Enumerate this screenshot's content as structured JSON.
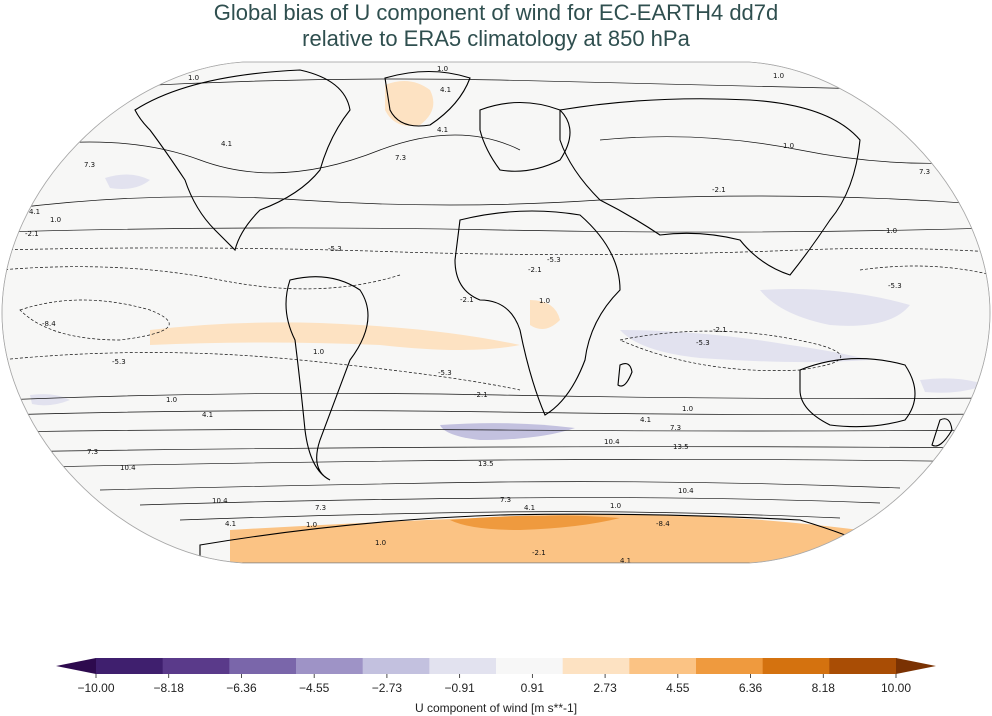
{
  "title": {
    "line1": "Global bias of U component of wind for EC-EARTH4 dd7d",
    "line2": "relative to ERA5 climatology at 850 hPa"
  },
  "colorbar": {
    "label": "U component of wind [m s**-1]",
    "ticks": [
      "−10.00",
      "−8.18",
      "−6.36",
      "−4.55",
      "−2.73",
      "−0.91",
      "0.91",
      "2.73",
      "4.55",
      "6.36",
      "8.18",
      "10.00"
    ],
    "colors": [
      "#3f1f6e",
      "#5a3a8a",
      "#7a66aa",
      "#9e93c6",
      "#c3c1df",
      "#e2e2ef",
      "#f7f7f7",
      "#fde2c2",
      "#fbc384",
      "#ef9a3e",
      "#d4720f",
      "#a94d05"
    ],
    "extend_low_color": "#2d0a4e",
    "extend_high_color": "#7a3203"
  },
  "map": {
    "projection": "robinson",
    "background": "#f7f7f6",
    "land_outline": "#000000"
  },
  "contour_labels": [
    {
      "text": "1.0"
    },
    {
      "text": "1.0"
    },
    {
      "text": "4.1"
    },
    {
      "text": "1.0"
    },
    {
      "text": "4.1"
    },
    {
      "text": "7.3"
    },
    {
      "text": "7.3"
    },
    {
      "text": "7.3"
    },
    {
      "text": "4.1"
    },
    {
      "text": "1.0"
    },
    {
      "text": "-2.1"
    },
    {
      "text": "1.0"
    },
    {
      "text": "-5.3"
    },
    {
      "text": "-5.3"
    },
    {
      "text": "-8.4"
    },
    {
      "text": "-5.3"
    },
    {
      "text": "-2.1"
    },
    {
      "text": "-2.1"
    },
    {
      "text": "-5.3"
    },
    {
      "text": "1.0"
    },
    {
      "text": "4.1"
    },
    {
      "text": "7.3"
    },
    {
      "text": "10.4"
    },
    {
      "text": "13.5"
    },
    {
      "text": "10.4"
    },
    {
      "text": "7.3"
    },
    {
      "text": "4.1"
    },
    {
      "text": "1.0"
    },
    {
      "text": "-5.3"
    },
    {
      "text": "-2.1"
    },
    {
      "text": "4.1"
    },
    {
      "text": "7.3"
    },
    {
      "text": "10.4"
    },
    {
      "text": "13.5"
    },
    {
      "text": "10.4"
    },
    {
      "text": "7.3"
    },
    {
      "text": "4.1"
    },
    {
      "text": "1.0"
    },
    {
      "text": "-2.1"
    },
    {
      "text": "-5.3"
    },
    {
      "text": "1.0"
    },
    {
      "text": "1.0"
    },
    {
      "text": "4.1"
    },
    {
      "text": "1.0"
    },
    {
      "text": "-2.1"
    },
    {
      "text": "-2.1"
    },
    {
      "text": "1.0"
    },
    {
      "text": "4.1"
    },
    {
      "text": "1.0"
    },
    {
      "text": "-8.4"
    }
  ]
}
